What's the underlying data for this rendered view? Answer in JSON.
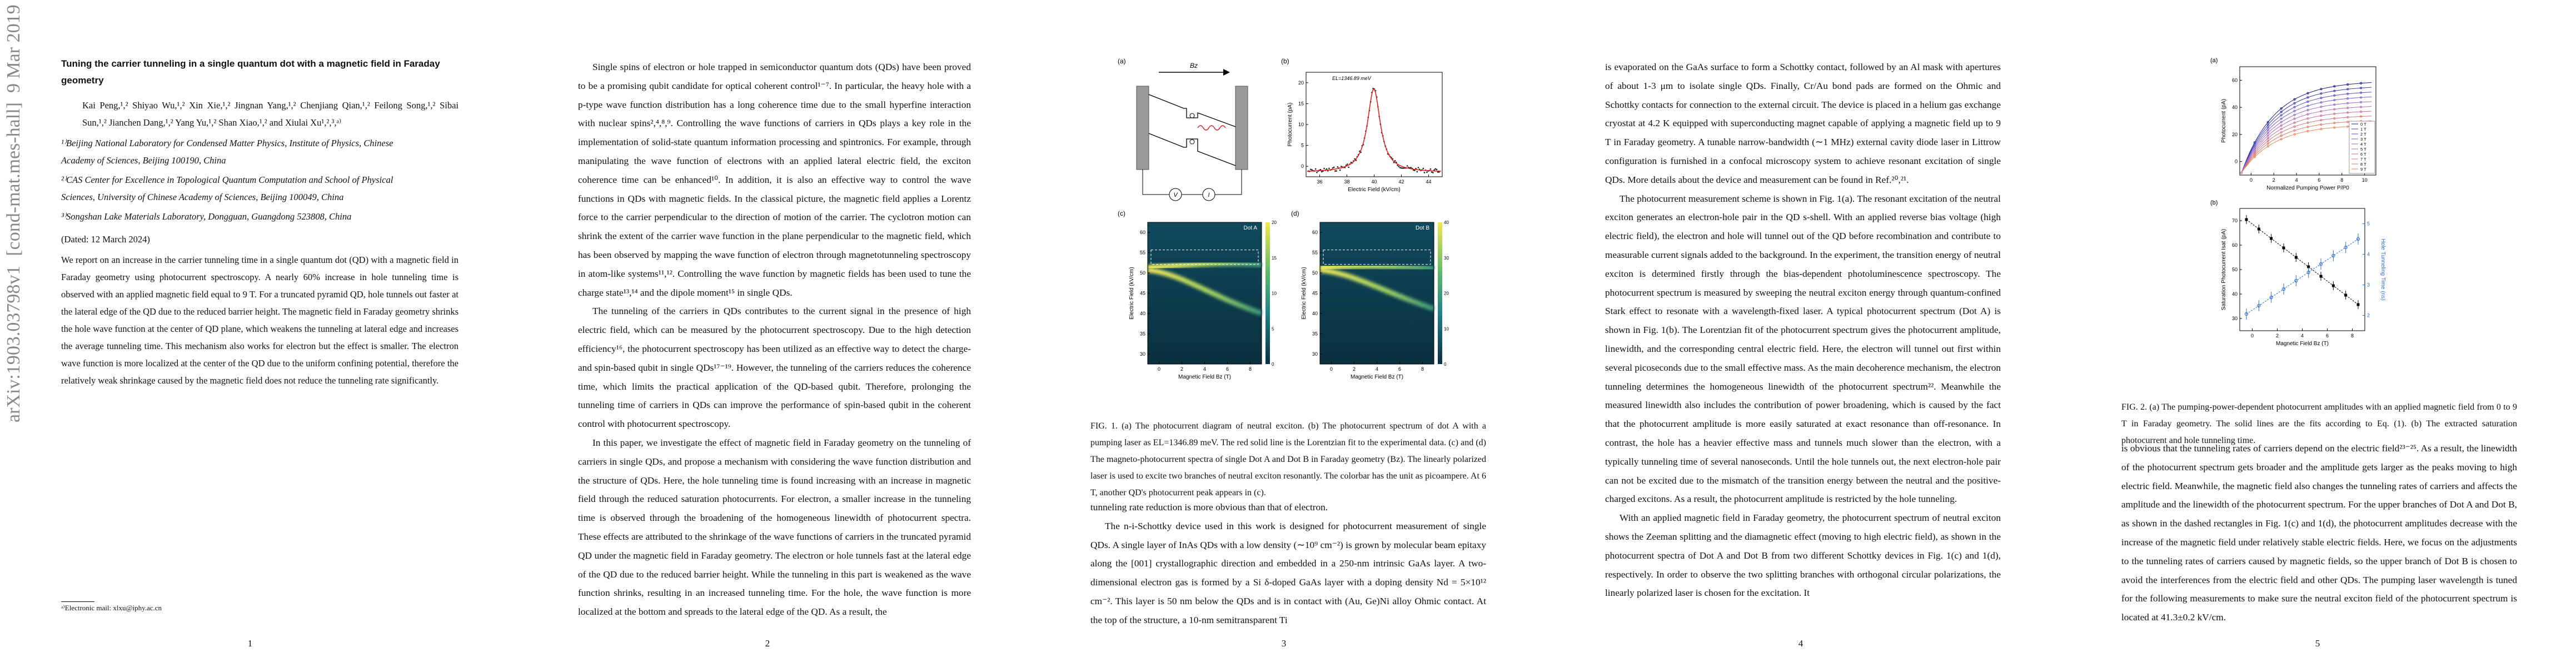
{
  "arxiv_stamp": "arXiv:1903.03798v1  [cond-mat.mes-hall]  9 Mar 2019",
  "page1": {
    "title": "Tuning the carrier tunneling in a single quantum dot with a magnetic field in Faraday geometry",
    "authors": "Kai Peng,¹,² Shiyao Wu,¹,² Xin Xie,¹,² Jingnan Yang,¹,² Chenjiang Qian,¹,² Feilong Song,¹,² Sibai Sun,¹,² Jianchen Dang,¹,² Yang Yu,¹,² Shan Xiao,¹,² and Xiulai Xu¹,²,³,ᵃ⁾",
    "affiliations": [
      "¹⁾Beijing National Laboratory for Condensed Matter Physics, Institute of Physics, Chinese Academy of Sciences, Beijing 100190, China",
      "²⁾CAS Center for Excellence in Topological Quantum Computation and School of Physical Sciences, University of Chinese Academy of Sciences, Beijing 100049, China",
      "³⁾Songshan Lake Materials Laboratory, Dongguan, Guangdong 523808, China"
    ],
    "dated": "(Dated: 12 March 2024)",
    "abstract": "We report on an increase in the carrier tunneling time in a single quantum dot (QD) with a magnetic field in Faraday geometry using photocurrent spectroscopy. A nearly 60% increase in hole tunneling time is observed with an applied magnetic field equal to 9 T. For a truncated pyramid QD, hole tunnels out faster at the lateral edge of the QD due to the reduced barrier height. The magnetic field in Faraday geometry shrinks the hole wave function at the center of QD plane, which weakens the tunneling at lateral edge and increases the average tunneling time. This mechanism also works for electron but the effect is smaller. The electron wave function is more localized at the center of the QD due to the uniform confining potential, therefore the relatively weak shrinkage caused by the magnetic field does not reduce the tunneling rate significantly.",
    "footnote": "ᵃ⁾Electronic mail: xlxu@iphy.ac.cn",
    "number": "1"
  },
  "page2": {
    "paragraphs": [
      "Single spins of electron or hole trapped in semiconductor quantum dots (QDs) have been proved to be a promising qubit candidate for optical coherent control¹⁻⁷. In particular, the heavy hole with a p-type wave function distribution has a long coherence time due to the small hyperfine interaction with nuclear spins²,⁴,⁸,⁹. Controlling the wave functions of carriers in QDs plays a key role in the implementation of solid-state quantum information processing and spintronics. For example, through manipulating the wave function of electrons with an applied lateral electric field, the exciton coherence time can be enhanced¹⁰. In addition, it is also an effective way to control the wave functions in QDs with magnetic fields. In the classical picture, the magnetic field applies a Lorentz force to the carrier perpendicular to the direction of motion of the carrier. The cyclotron motion can shrink the extent of the carrier wave function in the plane perpendicular to the magnetic field, which has been observed by mapping the wave function of electron through magnetotunneling spectroscopy in atom-like systems¹¹,¹². Controlling the wave function by magnetic fields has been used to tune the charge state¹³,¹⁴ and the dipole moment¹⁵ in single QDs.",
      "The tunneling of the carriers in QDs contributes to the current signal in the presence of high electric field, which can be measured by the photocurrent spectroscopy. Due to the high detection efficiency¹⁶, the photocurrent spectroscopy has been utilized as an effective way to detect the charge- and spin-based qubit in single QDs¹⁷⁻¹⁹. However, the tunneling of the carriers reduces the coherence time, which limits the practical application of the QD-based qubit. Therefore, prolonging the tunneling time of carriers in QDs can improve the performance of spin-based qubit in the coherent control with photocurrent spectroscopy.",
      "In this paper, we investigate the effect of magnetic field in Faraday geometry on the tunneling of carriers in single QDs, and propose a mechanism with considering the wave function distribution and the structure of QDs. Here, the hole tunneling time is found increasing with an increase in magnetic field through the reduced saturation photocurrents. For electron, a smaller increase in the tunneling time is observed through the broadening of the homogeneous linewidth of photocurrent spectra. These effects are attributed to the shrinkage of the wave functions of carriers in the truncated pyramid QD under the magnetic field in Faraday geometry. The electron or hole tunnels fast at the lateral edge of the QD due to the reduced barrier height. While the tunneling in this part is weakened as the wave function shrinks, resulting in an increased tunneling time. For the hole, the wave function is more localized at the bottom and spreads to the lateral edge of the QD. As a result, the"
    ],
    "number": "2"
  },
  "page3": {
    "figure": {
      "panels": [
        "(a)",
        "(b)",
        "(c)",
        "(d)"
      ],
      "schematic": {
        "field": "Bz",
        "voltage": "V",
        "current": "I"
      },
      "b": {
        "annotation": "EL=1346.89 meV",
        "ylabel": "Photocurrent (pA)",
        "xlabel": "Electric Field (kV/cm)",
        "xticks": [
          "36",
          "38",
          "40",
          "42",
          "44"
        ],
        "yticks": [
          "0",
          "5",
          "10",
          "15",
          "20"
        ]
      },
      "c": {
        "label": "Dot A",
        "ylabel": "Electric Field (kV/cm)",
        "xlabel": "Magnetic Field Bz (T)",
        "xticks": [
          "0",
          "2",
          "4",
          "6",
          "8"
        ],
        "yticks": [
          "30",
          "35",
          "40",
          "45",
          "50",
          "55",
          "60"
        ],
        "cbar": [
          "0",
          "5",
          "10",
          "15",
          "20"
        ]
      },
      "d": {
        "label": "Dot B",
        "ylabel": "Electric Field (kV/cm)",
        "xlabel": "Magnetic Field Bz (T)",
        "xticks": [
          "0",
          "2",
          "4",
          "6",
          "8"
        ],
        "yticks": [
          "30",
          "35",
          "40",
          "45",
          "50",
          "55",
          "60"
        ],
        "cbar": [
          "0",
          "10",
          "20",
          "30",
          "40"
        ]
      }
    },
    "caption": "FIG. 1. (a) The photocurrent diagram of neutral exciton. (b) The photocurrent spectrum of dot A with a pumping laser as EL=1346.89 meV. The red solid line is the Lorentzian fit to the experimental data. (c) and (d) The magneto-photocurrent spectra of single Dot A and Dot B in Faraday geometry (Bz). The linearly polarized laser is used to excite two branches of neutral exciton resonantly. The colorbar has the unit as picoampere. At 6 T, another QD's photocurrent peak appears in (c).",
    "paragraphs": [
      "tunneling rate reduction is more obvious than that of electron.",
      "The n-i-Schottky device used in this work is designed for photocurrent measurement of single QDs. A single layer of InAs QDs with a low density (∼10⁹ cm⁻²) is grown by molecular beam epitaxy along the [001] crystallographic direction and embedded in a 250-nm intrinsic GaAs layer. A two-dimensional electron gas is formed by a Si δ-doped GaAs layer with a doping density Nd = 5×10¹² cm⁻². This layer is 50 nm below the QDs and is in contact with (Au, Ge)Ni alloy Ohmic contact. At the top of the structure, a 10-nm semitransparent Ti"
    ],
    "number": "3"
  },
  "page4": {
    "paragraphs": [
      "is evaporated on the GaAs surface to form a Schottky contact, followed by an Al mask with apertures of about 1-3 μm to isolate single QDs. Finally, Cr/Au bond pads are formed on the Ohmic and Schottky contacts for connection to the external circuit. The device is placed in a helium gas exchange cryostat at 4.2 K equipped with superconducting magnet capable of applying a magnetic field up to 9 T in Faraday geometry. A tunable narrow-bandwidth (∼1 MHz) external cavity diode laser in Littrow configuration is furnished in a confocal microscopy system to achieve resonant excitation of single QDs. More details about the device and measurement can be found in Ref.²⁰,²¹.",
      "The photocurrent measurement scheme is shown in Fig. 1(a). The resonant excitation of the neutral exciton generates an electron-hole pair in the QD s-shell. With an applied reverse bias voltage (high electric field), the electron and hole will tunnel out of the QD before recombination and contribute to measurable current signals added to the background. In the experiment, the transition energy of neutral exciton is determined firstly through the bias-dependent photoluminescence spectroscopy. The photocurrent spectrum is measured by sweeping the neutral exciton energy through quantum-confined Stark effect to resonate with a wavelength-fixed laser. A typical photocurrent spectrum (Dot A) is shown in Fig. 1(b). The Lorentzian fit of the photocurrent spectrum gives the photocurrent amplitude, linewidth, and the corresponding central electric field. Here, the electron will tunnel out first within several picoseconds due to the small effective mass. As the main decoherence mechanism, the electron tunneling determines the homogeneous linewidth of the photocurrent spectrum²². Meanwhile the measured linewidth also includes the contribution of power broadening, which is caused by the fact that the photocurrent amplitude is more easily saturated at exact resonance than off-resonance. In contrast, the hole has a heavier effective mass and tunnels much slower than the electron, with a typically tunneling time of several nanoseconds. Until the hole tunnels out, the next electron-hole pair can not be excited due to the mismatch of the transition energy between the neutral and the positive-charged excitons. As a result, the photocurrent amplitude is restricted by the hole tunneling.",
      "With an applied magnetic field in Faraday geometry, the photocurrent spectrum of neutral exciton shows the Zeeman splitting and the diamagnetic effect (moving to high electric field), as shown in the photocurrent spectra of Dot A and Dot B from two different Schottky devices in Fig. 1(c) and 1(d), respectively. In order to observe the two splitting branches with orthogonal circular polarizations, the linearly polarized laser is chosen for the excitation. It"
    ],
    "number": "4"
  },
  "page5": {
    "figure": {
      "panels": [
        "(a)",
        "(b)"
      ],
      "a": {
        "ylabel": "Photocurrent (pA)",
        "xlabel": "Normalized Pumping Power P/P0",
        "xticks": [
          "0",
          "2",
          "4",
          "6",
          "8",
          "10"
        ],
        "yticks": [
          "0",
          "20",
          "40",
          "60"
        ],
        "legend": [
          "0 T",
          "1 T",
          "2 T",
          "3 T",
          "4 T",
          "5 T",
          "6 T",
          "7 T",
          "8 T",
          "9 T"
        ]
      },
      "b": {
        "ylabel": "Saturation Photocurrent Isat (pA)",
        "y2label": "Hole Tunneling Time (ns)",
        "xlabel": "Magnetic Field Bz (T)",
        "xticks": [
          "0",
          "2",
          "4",
          "6",
          "8"
        ],
        "yticks": [
          "30",
          "40",
          "50",
          "60",
          "70"
        ],
        "y2ticks": [
          "2",
          "3",
          "4",
          "5"
        ]
      }
    },
    "caption": "FIG. 2. (a) The pumping-power-dependent photocurrent amplitudes with an applied magnetic field from 0 to 9 T in Faraday geometry. The solid lines are the fits according to Eq. (1). (b) The extracted saturation photocurrent and hole tunneling time.",
    "paragraphs": [
      "is obvious that the tunneling rates of carriers depend on the electric field²³⁻²⁵. As a result, the linewidth of the photocurrent spectrum gets broader and the amplitude gets larger as the peaks moving to high electric field. Meanwhile, the magnetic field also changes the tunneling rates of carriers and affects the amplitude and the linewidth of the photocurrent spectrum. For the upper branches of Dot A and Dot B, as shown in the dashed rectangles in Fig. 1(c) and 1(d), the photocurrent amplitudes decrease with the increase of the magnetic field under relatively stable electric fields. Here, we focus on the adjustments to the tunneling rates of carriers caused by magnetic fields, so the upper branch of Dot B is chosen to avoid the interferences from the electric field and other QDs. The pumping laser wavelength is tuned for the following measurements to make sure the neutral exciton field of the photocurrent spectrum is located at 41.3±0.2 kV/cm."
    ],
    "number": "5"
  }
}
